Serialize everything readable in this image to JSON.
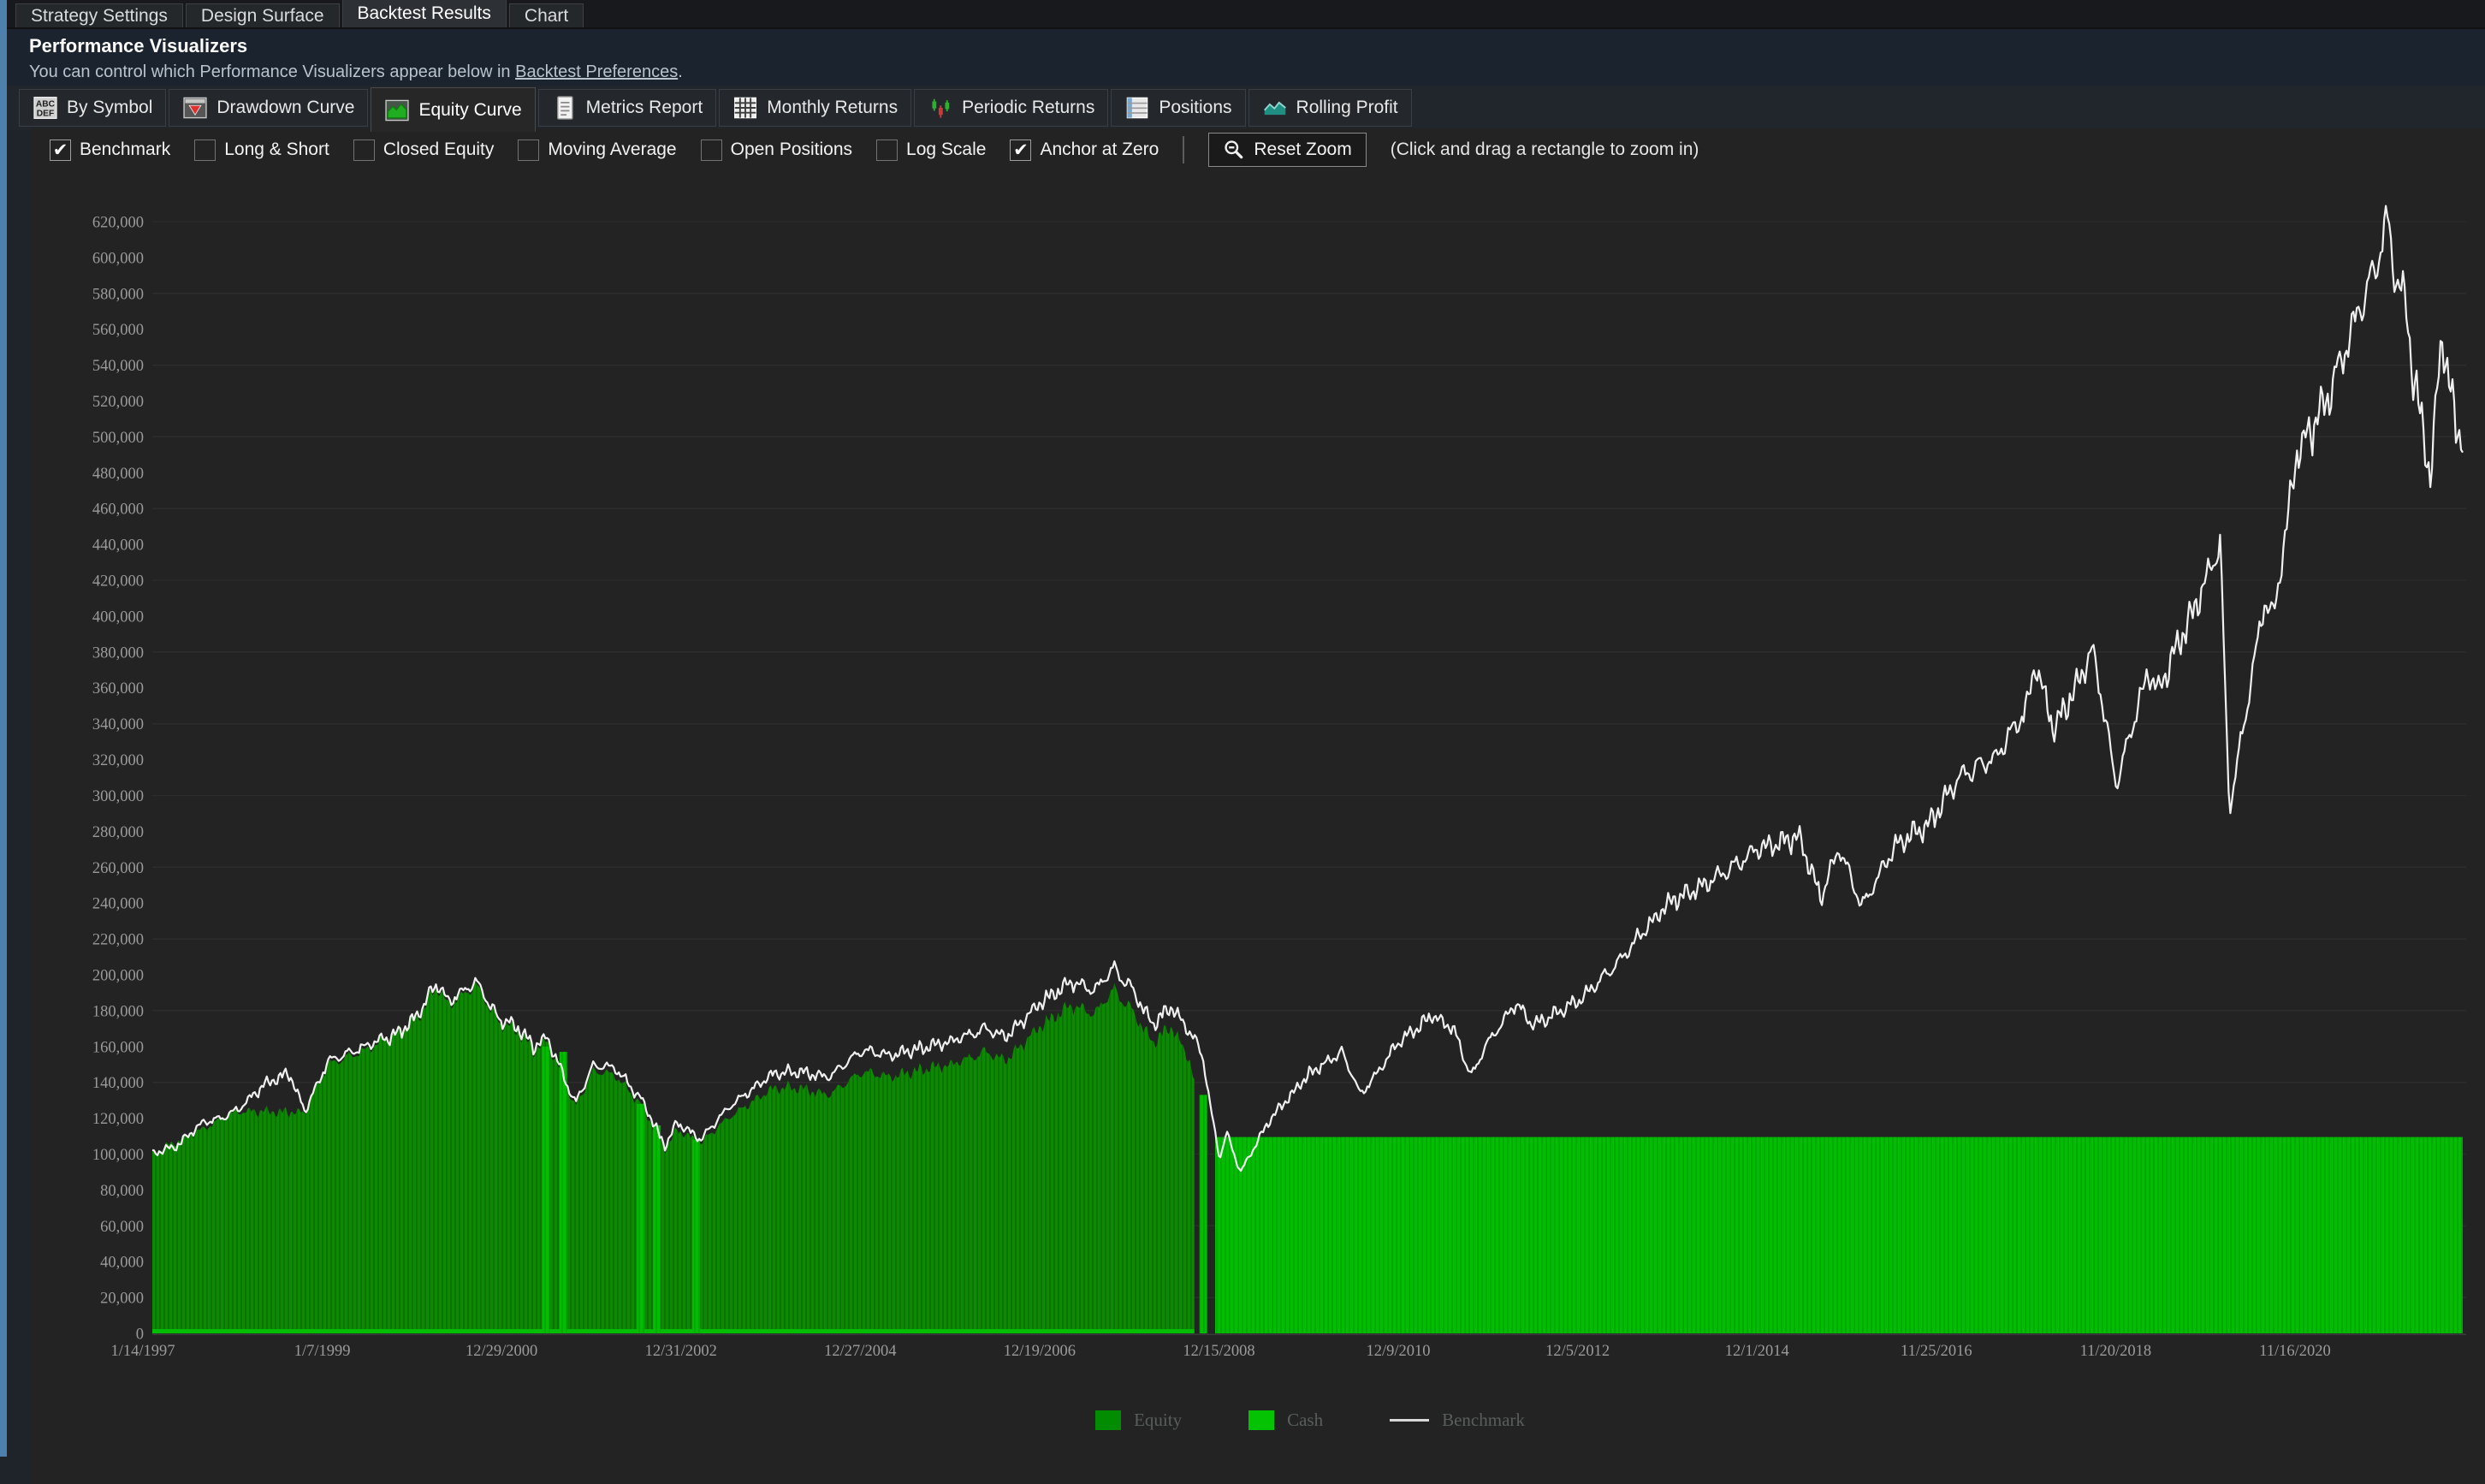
{
  "window": {
    "tabs": [
      "Strategy Settings",
      "Design Surface",
      "Backtest Results",
      "Chart"
    ],
    "active_tab": "Backtest Results"
  },
  "header": {
    "title": "Performance Visualizers",
    "subtitle_prefix": "You can control which Performance Visualizers appear below in ",
    "link_text": "Backtest Preferences",
    "subtitle_suffix": "."
  },
  "visualizer_tabs": {
    "active": "Equity Curve",
    "items": [
      {
        "label": "By Symbol",
        "icon": "abc-icon"
      },
      {
        "label": "Drawdown Curve",
        "icon": "drawdown-icon"
      },
      {
        "label": "Equity Curve",
        "icon": "equity-curve-icon"
      },
      {
        "label": "Metrics Report",
        "icon": "report-icon"
      },
      {
        "label": "Monthly Returns",
        "icon": "calendar-grid-icon"
      },
      {
        "label": "Periodic Returns",
        "icon": "periodic-bars-icon"
      },
      {
        "label": "Positions",
        "icon": "positions-table-icon"
      },
      {
        "label": "Rolling Profit",
        "icon": "rolling-profit-icon"
      }
    ]
  },
  "toolbar": {
    "checkboxes": [
      {
        "label": "Benchmark",
        "checked": true
      },
      {
        "label": "Long & Short",
        "checked": false
      },
      {
        "label": "Closed Equity",
        "checked": false
      },
      {
        "label": "Moving Average",
        "checked": false
      },
      {
        "label": "Open Positions",
        "checked": false
      },
      {
        "label": "Log Scale",
        "checked": false
      },
      {
        "label": "Anchor at Zero",
        "checked": true
      }
    ],
    "reset_button": "Reset Zoom",
    "hint": "(Click and drag a rectangle to zoom in)"
  },
  "chart_data": {
    "type": "area",
    "ylim": [
      0,
      620000
    ],
    "y_ticks": [
      0,
      20000,
      40000,
      60000,
      80000,
      100000,
      120000,
      140000,
      160000,
      180000,
      200000,
      220000,
      240000,
      260000,
      280000,
      300000,
      320000,
      340000,
      360000,
      380000,
      400000,
      420000,
      440000,
      460000,
      480000,
      500000,
      520000,
      540000,
      560000,
      580000,
      600000,
      620000
    ],
    "x_tick_labels": [
      "1/14/1997",
      "1/7/1999",
      "12/29/2000",
      "12/31/2002",
      "12/27/2004",
      "12/19/2006",
      "12/15/2008",
      "12/9/2010",
      "12/5/2012",
      "12/1/2014",
      "11/25/2016",
      "11/20/2018",
      "11/16/2020"
    ],
    "gridlines": {
      "start": 20000,
      "step": 40000,
      "color": "#2d2d2d"
    },
    "legend": [
      {
        "label": "Equity",
        "color": "#018c01",
        "type": "swatch"
      },
      {
        "label": "Cash",
        "color": "#03c303",
        "type": "swatch"
      },
      {
        "label": "Benchmark",
        "color": "#d9d9d9",
        "type": "line"
      }
    ],
    "series": {
      "benchmark": {
        "name": "Benchmark",
        "color": "#f0f0f0",
        "keypoints": [
          [
            0,
            100000
          ],
          [
            0.01,
            104000
          ],
          [
            0.022,
            118000
          ],
          [
            0.03,
            120000
          ],
          [
            0.037,
            125000
          ],
          [
            0.049,
            139000
          ],
          [
            0.059,
            145000
          ],
          [
            0.066,
            124000
          ],
          [
            0.072,
            140000
          ],
          [
            0.076,
            152000
          ],
          [
            0.096,
            162000
          ],
          [
            0.107,
            168000
          ],
          [
            0.115,
            178000
          ],
          [
            0.123,
            196000
          ],
          [
            0.128,
            185000
          ],
          [
            0.14,
            196000
          ],
          [
            0.15,
            175000
          ],
          [
            0.158,
            171000
          ],
          [
            0.165,
            160000
          ],
          [
            0.171,
            165000
          ],
          [
            0.183,
            128000
          ],
          [
            0.191,
            150000
          ],
          [
            0.2,
            148000
          ],
          [
            0.212,
            130000
          ],
          [
            0.222,
            104000
          ],
          [
            0.227,
            118000
          ],
          [
            0.237,
            108000
          ],
          [
            0.251,
            128000
          ],
          [
            0.268,
            144000
          ],
          [
            0.28,
            146000
          ],
          [
            0.293,
            143000
          ],
          [
            0.307,
            158000
          ],
          [
            0.32,
            155000
          ],
          [
            0.336,
            160000
          ],
          [
            0.346,
            163000
          ],
          [
            0.361,
            170000
          ],
          [
            0.369,
            165000
          ],
          [
            0.385,
            185000
          ],
          [
            0.398,
            196000
          ],
          [
            0.408,
            191000
          ],
          [
            0.416,
            204000
          ],
          [
            0.424,
            192000
          ],
          [
            0.433,
            172000
          ],
          [
            0.441,
            183000
          ],
          [
            0.453,
            160000
          ],
          [
            0.455,
            152000
          ],
          [
            0.459,
            118000
          ],
          [
            0.462,
            98000
          ],
          [
            0.465,
            112000
          ],
          [
            0.471,
            90000
          ],
          [
            0.484,
            120000
          ],
          [
            0.501,
            145000
          ],
          [
            0.515,
            157000
          ],
          [
            0.523,
            133000
          ],
          [
            0.54,
            163000
          ],
          [
            0.554,
            177000
          ],
          [
            0.563,
            170000
          ],
          [
            0.571,
            143000
          ],
          [
            0.577,
            160000
          ],
          [
            0.59,
            184000
          ],
          [
            0.598,
            172000
          ],
          [
            0.618,
            186000
          ],
          [
            0.635,
            208000
          ],
          [
            0.656,
            240000
          ],
          [
            0.678,
            255000
          ],
          [
            0.695,
            270000
          ],
          [
            0.713,
            277000
          ],
          [
            0.722,
            243000
          ],
          [
            0.73,
            271000
          ],
          [
            0.74,
            238000
          ],
          [
            0.755,
            273000
          ],
          [
            0.769,
            284000
          ],
          [
            0.782,
            310000
          ],
          [
            0.798,
            322000
          ],
          [
            0.811,
            348000
          ],
          [
            0.815,
            374000
          ],
          [
            0.823,
            336000
          ],
          [
            0.84,
            381000
          ],
          [
            0.85,
            306000
          ],
          [
            0.864,
            370000
          ],
          [
            0.868,
            358000
          ],
          [
            0.889,
            420000
          ],
          [
            0.895,
            441000
          ],
          [
            0.899,
            291000
          ],
          [
            0.914,
            408000
          ],
          [
            0.918,
            398000
          ],
          [
            0.928,
            489000
          ],
          [
            0.941,
            520000
          ],
          [
            0.953,
            562000
          ],
          [
            0.963,
            598000
          ],
          [
            0.968,
            623000
          ],
          [
            0.97,
            595000
          ],
          [
            0.976,
            570000
          ],
          [
            0.978,
            540000
          ],
          [
            0.986,
            477000
          ],
          [
            0.991,
            560000
          ],
          [
            0.997,
            505000
          ],
          [
            1.0,
            500000
          ]
        ]
      },
      "equity": {
        "name": "Equity",
        "fill_light": "#0e8a02",
        "fill_dark": "#0b7502",
        "end_frac": 0.451,
        "keypoints": [
          [
            0,
            100000
          ],
          [
            0.037,
            124000
          ],
          [
            0.066,
            123000
          ],
          [
            0.076,
            150000
          ],
          [
            0.096,
            160000
          ],
          [
            0.115,
            176000
          ],
          [
            0.123,
            194000
          ],
          [
            0.128,
            183000
          ],
          [
            0.14,
            194000
          ],
          [
            0.15,
            173000
          ],
          [
            0.158,
            169000
          ],
          [
            0.165,
            158000
          ],
          [
            0.171,
            163000
          ],
          [
            0.183,
            126000
          ],
          [
            0.191,
            147000
          ],
          [
            0.2,
            144000
          ],
          [
            0.212,
            127000
          ],
          [
            0.222,
            102000
          ],
          [
            0.227,
            114000
          ],
          [
            0.237,
            106000
          ],
          [
            0.251,
            122000
          ],
          [
            0.268,
            136000
          ],
          [
            0.28,
            137000
          ],
          [
            0.293,
            133000
          ],
          [
            0.307,
            146000
          ],
          [
            0.32,
            143000
          ],
          [
            0.336,
            148000
          ],
          [
            0.346,
            150000
          ],
          [
            0.361,
            157000
          ],
          [
            0.369,
            152000
          ],
          [
            0.385,
            172000
          ],
          [
            0.398,
            183000
          ],
          [
            0.408,
            178000
          ],
          [
            0.416,
            192000
          ],
          [
            0.424,
            180000
          ],
          [
            0.433,
            162000
          ],
          [
            0.441,
            172000
          ],
          [
            0.449,
            152000
          ],
          [
            0.451,
            140000
          ]
        ]
      },
      "cash": {
        "name": "Cash",
        "fill_light": "#02bd02",
        "fill_dark": "#00aa00",
        "level": 109500,
        "start_frac": 0.46,
        "residual_strip_height": 5,
        "blips": [
          {
            "f": 0.17,
            "v": 160000
          },
          {
            "f": 0.1775,
            "v": 157000
          },
          {
            "f": 0.211,
            "v": 128000
          },
          {
            "f": 0.218,
            "v": 116000
          },
          {
            "f": 0.235,
            "v": 108000
          },
          {
            "f": 0.4545,
            "v": 133000
          }
        ]
      }
    },
    "noise": {
      "a1": 0.013,
      "f1": 890,
      "p1": 1.7,
      "a2": 0.009,
      "f2": 2310,
      "p2": 0.4,
      "a3": 0.006,
      "f3": 6070,
      "p3": 2.9,
      "jitter": 0.006
    }
  }
}
